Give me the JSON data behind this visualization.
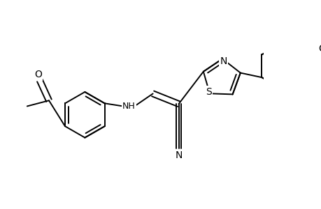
{
  "bg_color": "#ffffff",
  "line_color": "#000000",
  "lw": 1.4,
  "fs": 9,
  "figsize": [
    4.6,
    3.0
  ],
  "dpi": 100,
  "xlim": [
    0,
    460
  ],
  "ylim": [
    0,
    300
  ]
}
